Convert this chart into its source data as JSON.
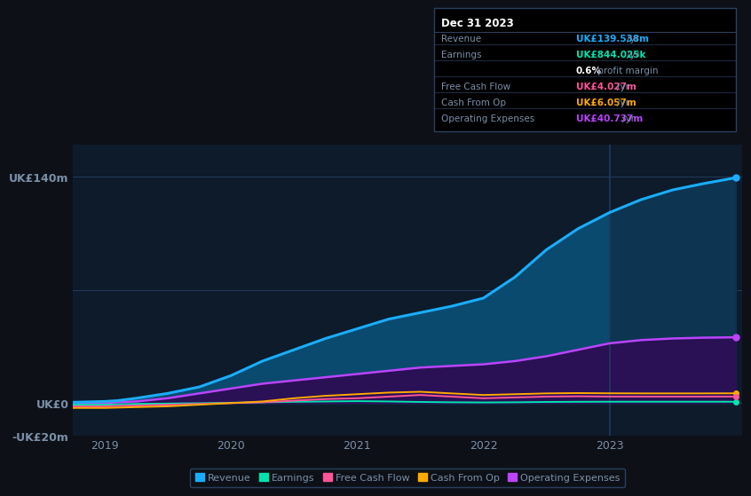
{
  "bg_color": "#0d1117",
  "chart_bg": "#0d1b2a",
  "grid_color": "#253a5e",
  "text_color": "#7a8fa8",
  "title_color": "#ffffff",
  "ylabel_color": "#aabbcc",
  "x_years": [
    2018.75,
    2019.0,
    2019.1,
    2019.25,
    2019.5,
    2019.75,
    2020.0,
    2020.25,
    2020.5,
    2020.75,
    2021.0,
    2021.25,
    2021.5,
    2021.75,
    2022.0,
    2022.25,
    2022.5,
    2022.75,
    2023.0,
    2023.25,
    2023.5,
    2023.75,
    2024.0
  ],
  "revenue": [
    0.5,
    1,
    1.5,
    3,
    6,
    10,
    17,
    26,
    33,
    40,
    46,
    52,
    56,
    60,
    65,
    78,
    95,
    108,
    118,
    126,
    132,
    136,
    139.538
  ],
  "earnings": [
    -1,
    -1,
    -0.8,
    -0.5,
    -0.3,
    -0.1,
    0.2,
    0.5,
    0.8,
    1.0,
    1.2,
    1.0,
    0.7,
    0.5,
    0.4,
    0.5,
    0.7,
    0.8,
    0.844,
    0.844,
    0.844,
    0.844,
    0.844
  ],
  "free_cash_flow": [
    -2,
    -2,
    -1.8,
    -1.5,
    -1,
    -0.5,
    0,
    0.5,
    1.5,
    2.5,
    3,
    4,
    5,
    4,
    3,
    3.5,
    4,
    4.2,
    4.027,
    4.0,
    4.0,
    4.0,
    4.027
  ],
  "cash_from_op": [
    -3,
    -3,
    -2.8,
    -2.5,
    -2,
    -1,
    0,
    1,
    3,
    4.5,
    5.5,
    6.5,
    7,
    6,
    5,
    5.5,
    6,
    6.2,
    6.057,
    6.0,
    6.0,
    6.0,
    6.057
  ],
  "op_expenses": [
    0,
    0,
    0.5,
    1,
    3,
    6,
    9,
    12,
    14,
    16,
    18,
    20,
    22,
    23,
    24,
    26,
    29,
    33,
    37,
    39,
    40,
    40.5,
    40.737
  ],
  "revenue_color": "#1aadff",
  "earnings_color": "#00e5b0",
  "fcf_color": "#ff5599",
  "cfop_color": "#ffaa00",
  "opex_color": "#bb44ff",
  "revenue_fill": "#0a4a6e",
  "opex_fill": "#2a1055",
  "ylim": [
    -20,
    160
  ],
  "yticks": [
    -20,
    0,
    70,
    140
  ],
  "ytick_labels": [
    "-UK£20m",
    "UK£0",
    "",
    "UK£140m"
  ],
  "xtick_labels": [
    "2019",
    "2020",
    "2021",
    "2022",
    "2023"
  ],
  "xtick_positions": [
    2019,
    2020,
    2021,
    2022,
    2023
  ],
  "vline_x": 2023.0,
  "vline_color": "#1e3a5f",
  "vline_right_bg": "#111d2e",
  "info_box": {
    "title": "Dec 31 2023",
    "rows": [
      {
        "label": "Revenue",
        "value": "UK£139.538m",
        "unit": "/yr",
        "color": "#1aadff"
      },
      {
        "label": "Earnings",
        "value": "UK£844.025k",
        "unit": "/yr",
        "color": "#00e5b0"
      },
      {
        "label": "",
        "value": "0.6%",
        "unit": " profit margin",
        "color": "#ffffff",
        "bold_value": true
      },
      {
        "label": "Free Cash Flow",
        "value": "UK£4.027m",
        "unit": "/yr",
        "color": "#ff5599"
      },
      {
        "label": "Cash From Op",
        "value": "UK£6.057m",
        "unit": "/yr",
        "color": "#ffaa00"
      },
      {
        "label": "Operating Expenses",
        "value": "UK£40.737m",
        "unit": "/yr",
        "color": "#bb44ff"
      }
    ]
  },
  "legend_items": [
    {
      "label": "Revenue",
      "color": "#1aadff"
    },
    {
      "label": "Earnings",
      "color": "#00e5b0"
    },
    {
      "label": "Free Cash Flow",
      "color": "#ff5599"
    },
    {
      "label": "Cash From Op",
      "color": "#ffaa00"
    },
    {
      "label": "Operating Expenses",
      "color": "#bb44ff"
    }
  ]
}
